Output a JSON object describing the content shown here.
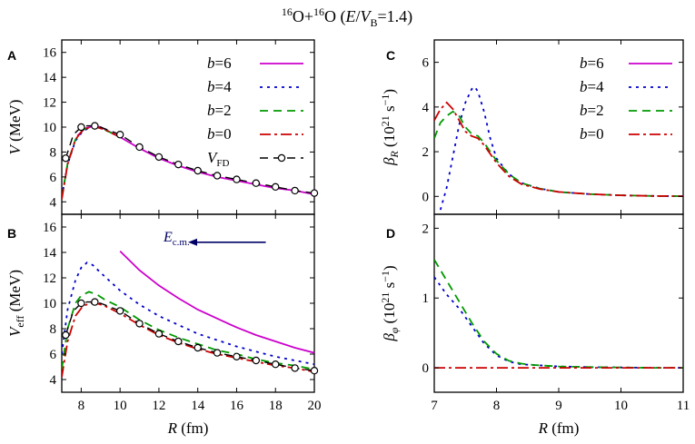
{
  "figure": {
    "title_parts": [
      "16",
      "O+",
      "16",
      "O (",
      "E",
      "/",
      "V",
      "B",
      "=1.4)"
    ]
  },
  "colors": {
    "b6": "#cc00cc",
    "b4": "#0000cc",
    "b2": "#009900",
    "b0": "#cc0000",
    "vfd": "#000000",
    "arrow": "#000066"
  },
  "chart_data": [
    {
      "panel": "A",
      "type": "line",
      "ylabel_parts": [
        "V",
        " (MeV)"
      ],
      "xlim": [
        7,
        20
      ],
      "ylim": [
        3,
        17
      ],
      "xticks": [
        8,
        10,
        12,
        14,
        16,
        18,
        20
      ],
      "yticks": [
        4,
        6,
        8,
        10,
        12,
        14,
        16
      ],
      "ytick_labels": [
        "4",
        "6",
        "8",
        "10",
        "12",
        "14",
        "16"
      ],
      "legend": [
        {
          "label": "b=6",
          "key": "b6",
          "dash": "solid"
        },
        {
          "label": "b=4",
          "key": "b4",
          "dash": "dot"
        },
        {
          "label": "b=2",
          "key": "b2",
          "dash": "dash"
        },
        {
          "label": "b=0",
          "key": "b0",
          "dash": "dashdot"
        },
        {
          "label": "VFD",
          "key": "vfd",
          "dash": "markers"
        }
      ],
      "series": [
        {
          "name": "b=6",
          "color": "b6",
          "dash": "solid",
          "x": [
            7.8,
            8.2,
            8.7,
            9.0,
            10,
            11,
            12,
            13,
            14,
            15,
            16,
            17,
            18,
            19,
            20
          ],
          "y": [
            9.3,
            9.9,
            10.1,
            10.0,
            9.2,
            8.3,
            7.5,
            6.9,
            6.4,
            6.0,
            5.7,
            5.4,
            5.1,
            4.9,
            4.6
          ]
        },
        {
          "name": "b=4",
          "color": "b4",
          "dash": "dot",
          "x": [
            7.0,
            7.3,
            7.7,
            8.1,
            8.5,
            8.8,
            9.2,
            10
          ],
          "y": [
            4.4,
            7.0,
            8.9,
            9.7,
            10.0,
            10.0,
            9.8,
            9.2
          ]
        },
        {
          "name": "b=2",
          "color": "b2",
          "dash": "dash",
          "x": [
            7.0,
            7.3,
            7.7,
            8.1,
            8.5,
            8.8,
            9.2,
            10
          ],
          "y": [
            4.3,
            7.1,
            9.0,
            9.8,
            10.0,
            10.0,
            9.8,
            9.2
          ]
        },
        {
          "name": "b=0",
          "color": "b0",
          "dash": "dashdot",
          "x": [
            7.0,
            7.3,
            7.7,
            8.1,
            8.5,
            8.8,
            9.2,
            10
          ],
          "y": [
            4.2,
            7.0,
            9.0,
            9.8,
            10.0,
            10.0,
            9.8,
            9.2
          ]
        },
        {
          "name": "VFD",
          "color": "vfd",
          "dash": "dash",
          "markers": true,
          "x": [
            7.2,
            7.6,
            8.0,
            8.3,
            8.7,
            9.0,
            10,
            11,
            12,
            13,
            14,
            15,
            16,
            17,
            18,
            19,
            20
          ],
          "y": [
            7.5,
            9.4,
            10.0,
            10.1,
            10.1,
            10.0,
            9.4,
            8.4,
            7.6,
            7.0,
            6.5,
            6.1,
            5.8,
            5.5,
            5.2,
            4.9,
            4.7
          ],
          "marker_x": [
            7.2,
            8.0,
            8.7,
            10,
            11,
            12,
            13,
            14,
            15,
            16,
            17,
            18,
            19,
            20
          ]
        }
      ]
    },
    {
      "panel": "B",
      "type": "line",
      "ylabel_parts": [
        "V",
        "eff",
        " (MeV)"
      ],
      "xlabel_parts": [
        "R",
        " (fm)"
      ],
      "xlim": [
        7,
        20
      ],
      "ylim": [
        3,
        17
      ],
      "xticks": [
        8,
        10,
        12,
        14,
        16,
        18,
        20
      ],
      "yticks": [
        4,
        6,
        8,
        10,
        12,
        14,
        16
      ],
      "xtick_labels": [
        "8",
        "10",
        "12",
        "14",
        "16",
        "18",
        "20"
      ],
      "ytick_labels": [
        "4",
        "6",
        "8",
        "10",
        "12",
        "14",
        "16"
      ],
      "annotation": {
        "text_main": "E",
        "text_sub": "c.m.",
        "arrow_from_x": 17.5,
        "arrow_to_x": 13.5,
        "at_y": 14.8
      },
      "series": [
        {
          "name": "b=6",
          "color": "b6",
          "dash": "solid",
          "x": [
            10,
            11,
            12,
            13,
            14,
            15,
            16,
            17,
            18,
            19,
            20
          ],
          "y": [
            14.1,
            12.6,
            11.4,
            10.4,
            9.5,
            8.8,
            8.1,
            7.5,
            7.0,
            6.5,
            6.1
          ]
        },
        {
          "name": "b=4",
          "color": "b4",
          "dash": "dot",
          "x": [
            7.0,
            7.3,
            7.7,
            8.0,
            8.3,
            8.6,
            9.0,
            10,
            11,
            12,
            13,
            14,
            15,
            16,
            17,
            18,
            19,
            20
          ],
          "y": [
            6.0,
            9.5,
            11.8,
            12.8,
            13.2,
            13.0,
            12.4,
            11.0,
            9.9,
            9.0,
            8.3,
            7.6,
            7.1,
            6.6,
            6.2,
            5.8,
            5.5,
            5.2
          ]
        },
        {
          "name": "b=2",
          "color": "b2",
          "dash": "dash",
          "x": [
            7.0,
            7.3,
            7.7,
            8.0,
            8.4,
            8.8,
            9.2,
            10,
            11,
            12,
            13,
            14,
            15,
            16,
            17,
            18,
            19,
            20
          ],
          "y": [
            4.8,
            8.0,
            10.0,
            10.6,
            10.9,
            10.7,
            10.3,
            9.7,
            8.7,
            7.9,
            7.3,
            6.8,
            6.3,
            6.0,
            5.6,
            5.3,
            5.1,
            4.8
          ]
        },
        {
          "name": "b=0",
          "color": "b0",
          "dash": "dashdot",
          "x": [
            7.0,
            7.3,
            7.7,
            8.1,
            8.5,
            8.8,
            9.2,
            10,
            11,
            12,
            13,
            14,
            15,
            16,
            17,
            18,
            19,
            20
          ],
          "y": [
            4.2,
            7.0,
            9.0,
            9.8,
            10.0,
            10.0,
            9.8,
            9.2,
            8.3,
            7.5,
            6.9,
            6.4,
            6.0,
            5.7,
            5.4,
            5.1,
            4.9,
            4.6
          ]
        },
        {
          "name": "VFD",
          "color": "vfd",
          "dash": "dash",
          "markers": true,
          "x": [
            7.2,
            7.6,
            8.0,
            8.3,
            8.7,
            9.0,
            10,
            11,
            12,
            13,
            14,
            15,
            16,
            17,
            18,
            19,
            20
          ],
          "y": [
            7.5,
            9.4,
            10.0,
            10.1,
            10.1,
            10.0,
            9.4,
            8.4,
            7.6,
            7.0,
            6.5,
            6.1,
            5.8,
            5.5,
            5.2,
            4.9,
            4.7
          ],
          "marker_x": [
            7.2,
            8.0,
            8.7,
            10,
            11,
            12,
            13,
            14,
            15,
            16,
            17,
            18,
            19,
            20
          ]
        }
      ]
    },
    {
      "panel": "C",
      "type": "line",
      "ylabel_parts": [
        "β",
        "R",
        " (10",
        "21",
        " s",
        "−1",
        ")"
      ],
      "xlim": [
        7,
        11
      ],
      "ylim": [
        -0.8,
        7
      ],
      "xticks": [
        8,
        9,
        10
      ],
      "yticks": [
        0,
        2,
        4,
        6
      ],
      "ytick_labels": [
        "0",
        "2",
        "4",
        "6"
      ],
      "legend": [
        {
          "label": "b=6",
          "key": "b6",
          "dash": "solid"
        },
        {
          "label": "b=4",
          "key": "b4",
          "dash": "dot"
        },
        {
          "label": "b=2",
          "key": "b2",
          "dash": "dash"
        },
        {
          "label": "b=0",
          "key": "b0",
          "dash": "dashdot"
        }
      ],
      "series": [
        {
          "name": "b=4",
          "color": "b4",
          "dash": "dot",
          "x": [
            7.1,
            7.2,
            7.3,
            7.4,
            7.5,
            7.6,
            7.65,
            7.7,
            7.8,
            7.9,
            8.0,
            8.2,
            8.4,
            8.7,
            9.0,
            9.5,
            10,
            10.5,
            11
          ],
          "y": [
            -0.6,
            0.4,
            1.8,
            3.2,
            4.2,
            4.8,
            4.9,
            4.7,
            3.8,
            2.6,
            1.7,
            1.0,
            0.6,
            0.35,
            0.2,
            0.1,
            0.05,
            0.02,
            0.01
          ]
        },
        {
          "name": "b=2",
          "color": "b2",
          "dash": "dash",
          "x": [
            7.0,
            7.1,
            7.2,
            7.3,
            7.4,
            7.5,
            7.6,
            7.7,
            7.8,
            8.0,
            8.2,
            8.4,
            8.7,
            9.0,
            9.5,
            10,
            10.5,
            11
          ],
          "y": [
            2.6,
            3.3,
            3.6,
            3.8,
            3.6,
            3.1,
            2.8,
            2.7,
            2.4,
            1.6,
            1.0,
            0.6,
            0.35,
            0.2,
            0.1,
            0.05,
            0.02,
            0.01
          ]
        },
        {
          "name": "b=0",
          "color": "b0",
          "dash": "dashdot",
          "x": [
            7.0,
            7.1,
            7.2,
            7.3,
            7.4,
            7.5,
            7.6,
            7.7,
            7.8,
            8.0,
            8.2,
            8.4,
            8.7,
            9.0,
            9.5,
            10,
            10.5,
            11
          ],
          "y": [
            3.4,
            3.9,
            4.2,
            3.9,
            3.4,
            2.9,
            2.7,
            2.6,
            2.3,
            1.5,
            0.9,
            0.55,
            0.33,
            0.2,
            0.1,
            0.05,
            0.02,
            0.01
          ]
        }
      ]
    },
    {
      "panel": "D",
      "type": "line",
      "ylabel_parts": [
        "β",
        "φ",
        " (10",
        "21",
        " s",
        "−1",
        ")"
      ],
      "xlabel_parts": [
        "R",
        " (fm)"
      ],
      "xlim": [
        7,
        11
      ],
      "ylim": [
        -0.35,
        2.2
      ],
      "xticks": [
        7,
        8,
        9,
        10,
        11
      ],
      "yticks": [
        0,
        1,
        2
      ],
      "xtick_labels": [
        "7",
        "8",
        "9",
        "10",
        "11"
      ],
      "ytick_labels": [
        "0",
        "1",
        "2"
      ],
      "series": [
        {
          "name": "b=4",
          "color": "b4",
          "dash": "dot",
          "x": [
            7.0,
            7.2,
            7.4,
            7.6,
            7.8,
            8.0,
            8.2,
            8.4,
            8.6,
            8.8,
            9.0,
            9.5,
            10,
            10.5,
            11
          ],
          "y": [
            1.3,
            1.05,
            0.85,
            0.6,
            0.35,
            0.18,
            0.09,
            0.05,
            0.04,
            0.03,
            0.02,
            0.01,
            0.005,
            0.0,
            0.0
          ]
        },
        {
          "name": "b=2",
          "color": "b2",
          "dash": "dash",
          "x": [
            7.0,
            7.2,
            7.4,
            7.6,
            7.8,
            8.0,
            8.2,
            8.4,
            8.6,
            8.8,
            9.0,
            9.5,
            10,
            10.5,
            11
          ],
          "y": [
            1.55,
            1.25,
            0.95,
            0.65,
            0.38,
            0.2,
            0.1,
            0.06,
            0.04,
            0.03,
            0.02,
            0.01,
            0.005,
            0.0,
            0.0
          ]
        },
        {
          "name": "b=0",
          "color": "b0",
          "dash": "dashdot",
          "x": [
            7.0,
            11.0
          ],
          "y": [
            0.0,
            0.0
          ]
        }
      ]
    }
  ]
}
